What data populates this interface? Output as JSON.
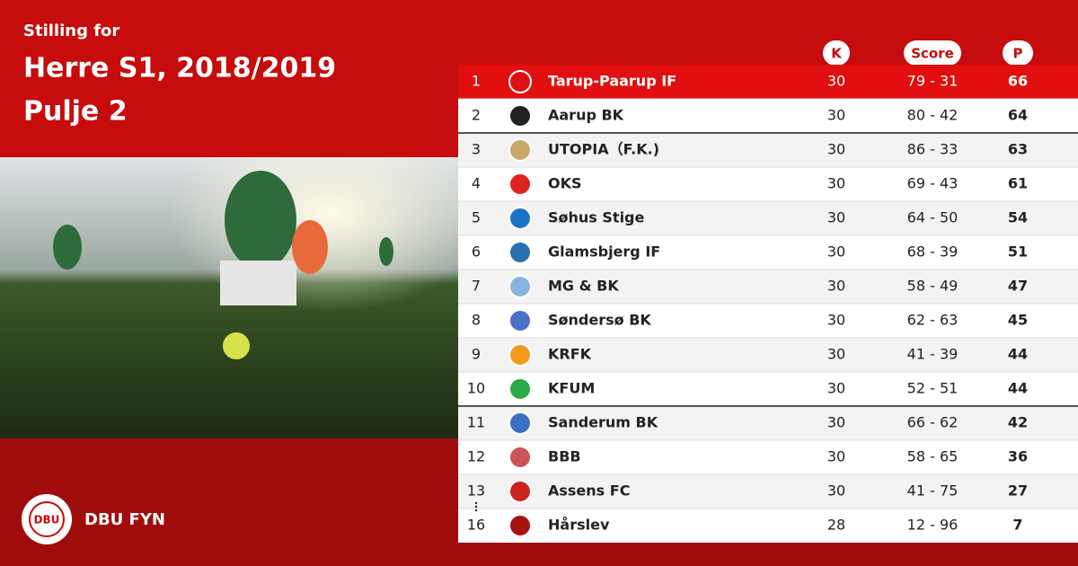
{
  "header": {
    "subtitle": "Stilling for",
    "title_lines": [
      "Herre S1, 2018/2019",
      "Pulje 2"
    ]
  },
  "table": {
    "columns": [
      "K",
      "Score",
      "P"
    ],
    "rows": [
      [
        1,
        "Tarup-Paarup IF",
        30,
        "79 - 31",
        66
      ],
      [
        2,
        "Aarup BK",
        30,
        "80 - 42",
        64
      ],
      [
        3,
        "UTOPIA（F.K.)",
        30,
        "86 - 33",
        63
      ],
      [
        4,
        "OKS",
        30,
        "69 - 43",
        61
      ],
      [
        5,
        "Søhus Stige",
        30,
        "64 - 50",
        54
      ],
      [
        6,
        "Glamsbjerg IF",
        30,
        "68 - 39",
        51
      ],
      [
        7,
        "MG & BK",
        30,
        "58 - 49",
        47
      ],
      [
        8,
        "Søndersø BK",
        30,
        "62 - 63",
        45
      ],
      [
        9,
        "KRFK",
        30,
        "41 - 39",
        44
      ],
      [
        10,
        "KFUM",
        30,
        "52 - 51",
        44
      ],
      [
        11,
        "Sanderum BK",
        30,
        "66 - 62",
        42
      ],
      [
        12,
        "BBB",
        30,
        "58 - 65",
        36
      ],
      [
        13,
        "Assens FC",
        30,
        "41 - 75",
        27
      ],
      [
        16,
        "Hårslev",
        28,
        "12 - 96",
        7
      ]
    ]
  },
  "footer": {
    "logo_text": "DBU",
    "brand": "DBU FYN"
  }
}
